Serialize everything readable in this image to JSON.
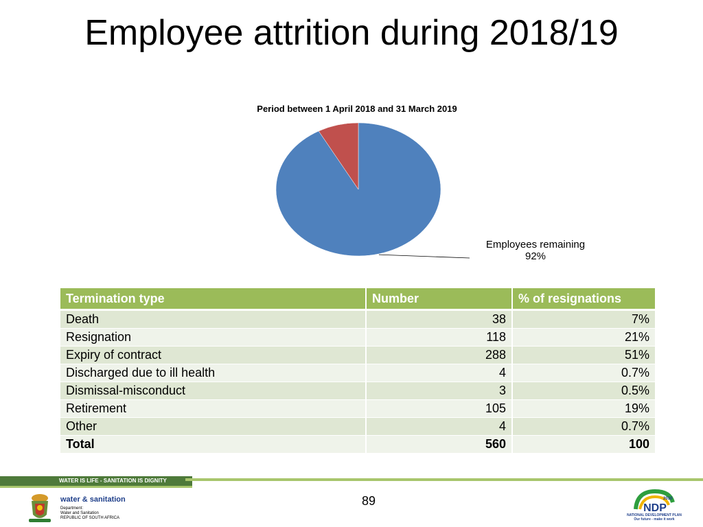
{
  "slide": {
    "title": "Employee attrition during 2018/19",
    "page_number": "89"
  },
  "chart_data": {
    "type": "pie",
    "title": "Period between 1 April 2018 and 31 March 2019",
    "slices": [
      {
        "name": "Employees remaining",
        "value": 92,
        "label_text": "92%",
        "color": "#4f81bd"
      },
      {
        "name": "Attrition",
        "value": 8,
        "color": "#c0504d"
      }
    ]
  },
  "table": {
    "headers": [
      "Termination type",
      "Number",
      "% of resignations"
    ],
    "rows": [
      [
        "Death",
        "38",
        "7%"
      ],
      [
        "Resignation",
        "118",
        "21%"
      ],
      [
        "Expiry of contract",
        "288",
        "51%"
      ],
      [
        "Discharged due to ill health",
        "4",
        "0.7%"
      ],
      [
        "Dismissal-misconduct",
        "3",
        "0.5%"
      ],
      [
        "Retirement",
        "105",
        "19%"
      ],
      [
        "Other",
        "4",
        "0.7%"
      ],
      [
        "Total",
        "560",
        "100"
      ]
    ]
  },
  "footer": {
    "slogan": "WATER IS LIFE - SANITATION IS DIGNITY",
    "dept_name": "water & sanitation",
    "dept_lines": [
      "Department:",
      "Water and Sanitation",
      "REPUBLIC OF SOUTH AFRICA"
    ],
    "ndp_lines": [
      "NATIONAL DEVELOPMENT PLAN",
      "Our future - make it work"
    ]
  }
}
